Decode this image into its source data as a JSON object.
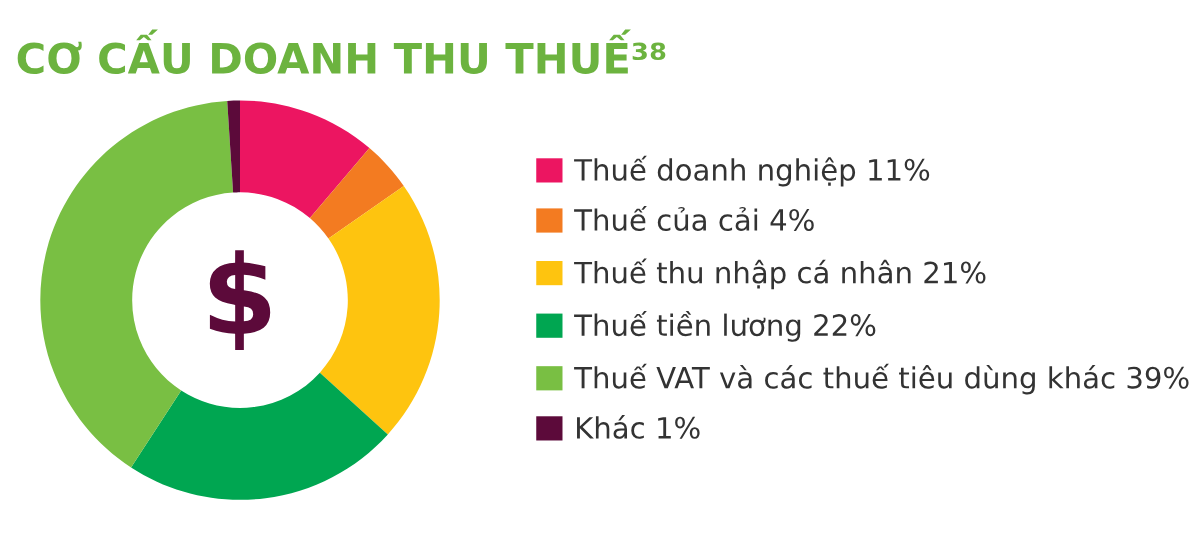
{
  "chart_data": {
    "type": "donut",
    "title": "CƠ CẤU DOANH THU THUẾ³⁸",
    "categories": [
      "Thuế doanh nghiệp",
      "Thuế của cải",
      "Thuế thu nhập cá nhân",
      "Thuế tiền lương",
      "Thuế VAT và các thuế tiêu dùng khác",
      "Khác"
    ],
    "values": [
      11,
      4,
      21,
      22,
      39,
      1
    ],
    "value_labels": [
      "11%",
      "4%",
      "21%",
      "22%",
      "39%",
      "1%"
    ],
    "colors": [
      "#ec1561",
      "#f37b21",
      "#fec40f",
      "#00a651",
      "#79bf43",
      "#5c0a3a"
    ],
    "legend": "right"
  }
}
